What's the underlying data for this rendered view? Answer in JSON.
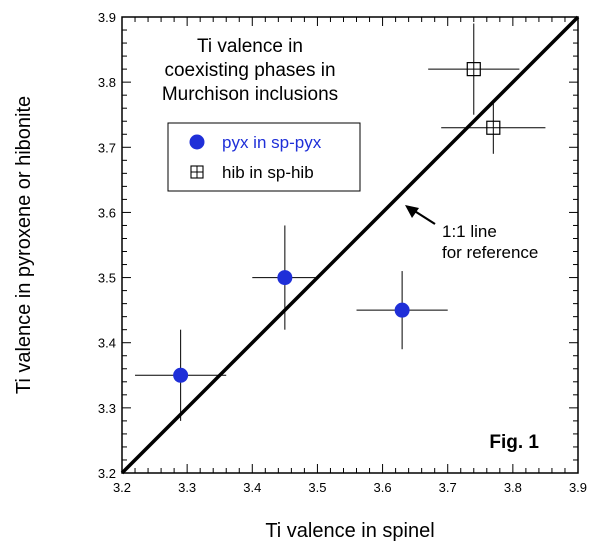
{
  "chart_data": {
    "type": "scatter",
    "title": "Ti valence in coexisting phases in Murchison inclusions",
    "title_lines": [
      "Ti valence in",
      "coexisting phases in",
      "Murchison inclusions"
    ],
    "xlabel": "Ti valence in spinel",
    "ylabel": "Ti valence in pyroxene or hibonite",
    "xlim": [
      3.2,
      3.9
    ],
    "ylim": [
      3.2,
      3.9
    ],
    "xticks": [
      "3.2",
      "3.3",
      "3.4",
      "3.5",
      "3.6",
      "3.7",
      "3.8",
      "3.9"
    ],
    "yticks": [
      "3.2",
      "3.3",
      "3.4",
      "3.5",
      "3.6",
      "3.7",
      "3.8",
      "3.9"
    ],
    "grid": false,
    "legend_position": "upper-left",
    "series": [
      {
        "name": "pyx in sp-pyx",
        "marker": "filled-circle",
        "color": "#1f2fd8",
        "points": [
          {
            "x": 3.29,
            "y": 3.35,
            "xerr": 0.07,
            "yerr": 0.07
          },
          {
            "x": 3.45,
            "y": 3.5,
            "xerr": 0.05,
            "yerr": 0.08
          },
          {
            "x": 3.63,
            "y": 3.45,
            "xerr": 0.07,
            "yerr": 0.06
          }
        ]
      },
      {
        "name": "hib in sp-hib",
        "marker": "boxed-plus",
        "color": "#000000",
        "points": [
          {
            "x": 3.74,
            "y": 3.82,
            "xerr": 0.07,
            "yerr": 0.07
          },
          {
            "x": 3.77,
            "y": 3.73,
            "xerr": 0.08,
            "yerr": 0.04
          }
        ]
      }
    ],
    "reference_line": {
      "from": [
        3.2,
        3.2
      ],
      "to": [
        3.9,
        3.9
      ]
    },
    "annotations": {
      "ref_line_lines": [
        "1:1 line",
        "for reference"
      ],
      "figure_label": "Fig. 1"
    }
  }
}
